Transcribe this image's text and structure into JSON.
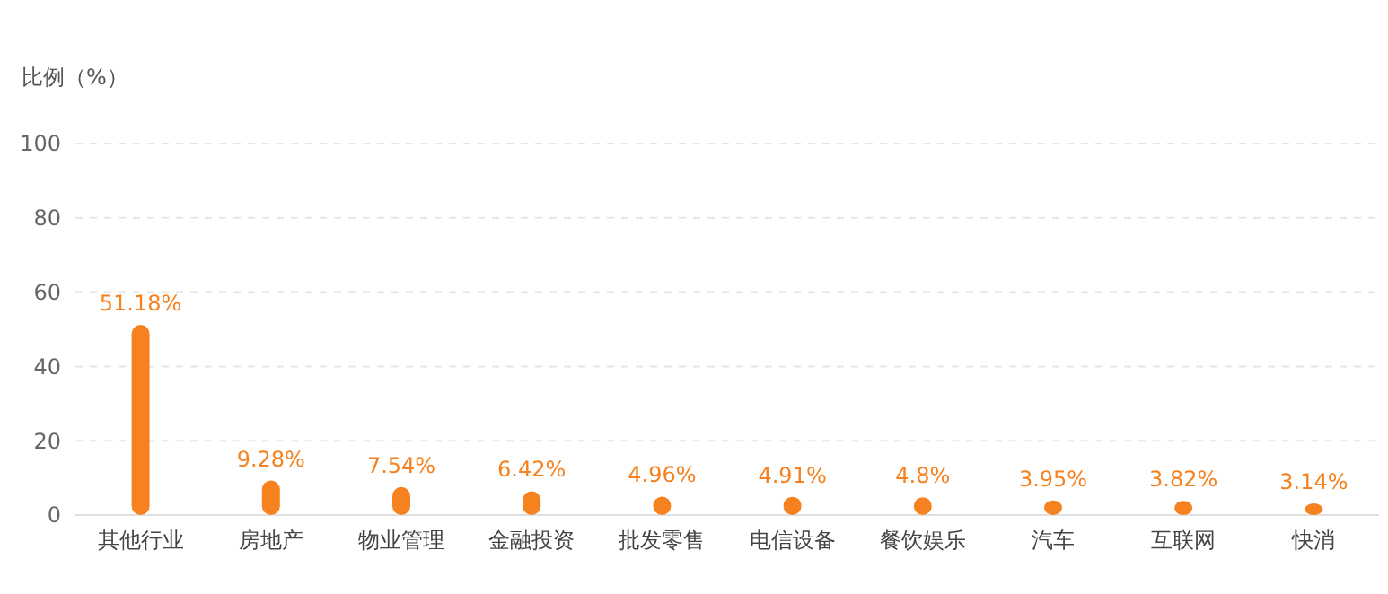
{
  "chart_data": {
    "type": "bar",
    "ylabel": "比例（%）",
    "categories": [
      "其他行业",
      "房地产",
      "物业管理",
      "金融投资",
      "批发零售",
      "电信设备",
      "餐饮娱乐",
      "汽车",
      "互联网",
      "快消"
    ],
    "values": [
      51.18,
      9.28,
      7.54,
      6.42,
      4.96,
      4.91,
      4.8,
      3.95,
      3.82,
      3.14
    ],
    "value_labels": [
      "51.18%",
      "9.28%",
      "7.54%",
      "6.42%",
      "4.96%",
      "4.91%",
      "4.8%",
      "3.95%",
      "3.82%",
      "3.14%"
    ],
    "color": "#f5821f",
    "ylim": [
      0,
      100
    ],
    "yticks": [
      0,
      20,
      40,
      60,
      80,
      100
    ],
    "grid": "y"
  }
}
